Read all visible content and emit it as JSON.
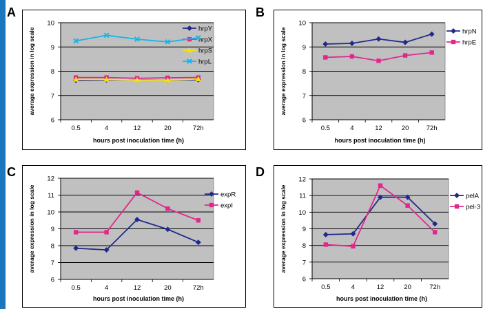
{
  "colors": {
    "side_bar": "#1a76bd",
    "plot_bg": "#c0c0c0"
  },
  "chart_data": [
    {
      "panel": "A",
      "type": "line",
      "categories": [
        "0.5",
        "4",
        "12",
        "20",
        "72h"
      ],
      "xlabel": "hours post inoculation time (h)",
      "ylabel": "average expression in log scale",
      "ylim": [
        6,
        10
      ],
      "yticks": [
        6,
        7,
        8,
        9,
        10
      ],
      "grid": true,
      "legend_position": "right",
      "series": [
        {
          "name": "hrpY",
          "color": "#1f2a8a",
          "marker": "diamond",
          "values": [
            7.62,
            7.64,
            7.65,
            7.63,
            7.65
          ]
        },
        {
          "name": "hrpX",
          "color": "#e0288c",
          "marker": "square",
          "values": [
            7.74,
            7.74,
            7.71,
            7.73,
            7.74
          ]
        },
        {
          "name": "hrpS",
          "color": "#f2e600",
          "marker": "triangle",
          "values": [
            7.66,
            7.66,
            7.64,
            7.63,
            7.68
          ]
        },
        {
          "name": "hrpL",
          "color": "#19b4e8",
          "marker": "x",
          "values": [
            9.25,
            9.48,
            9.32,
            9.21,
            9.38
          ]
        }
      ]
    },
    {
      "panel": "B",
      "type": "line",
      "categories": [
        "0.5",
        "4",
        "12",
        "20",
        "72h"
      ],
      "xlabel": "hours post inoculation time (h)",
      "ylabel": "average expression in log scale",
      "ylim": [
        6,
        10
      ],
      "yticks": [
        6,
        7,
        8,
        9,
        10
      ],
      "grid": true,
      "legend_position": "right",
      "series": [
        {
          "name": "hrpN",
          "color": "#1f2a8a",
          "marker": "diamond",
          "values": [
            9.12,
            9.15,
            9.33,
            9.19,
            9.53
          ]
        },
        {
          "name": "hrpE",
          "color": "#e0288c",
          "marker": "square",
          "values": [
            8.57,
            8.61,
            8.43,
            8.65,
            8.77
          ]
        }
      ]
    },
    {
      "panel": "C",
      "type": "line",
      "categories": [
        "0.5",
        "4",
        "12",
        "20",
        "72h"
      ],
      "xlabel": "hours post inoculation time (h)",
      "ylabel": "average expression in log scale",
      "ylim": [
        6,
        12
      ],
      "yticks": [
        6,
        7,
        8,
        9,
        10,
        11,
        12
      ],
      "grid": true,
      "legend_position": "right",
      "series": [
        {
          "name": "expR",
          "color": "#1f2a8a",
          "marker": "diamond",
          "values": [
            7.85,
            7.75,
            9.55,
            8.97,
            8.2
          ]
        },
        {
          "name": "expI",
          "color": "#e0288c",
          "marker": "square",
          "values": [
            8.8,
            8.8,
            11.15,
            10.2,
            9.5
          ]
        }
      ]
    },
    {
      "panel": "D",
      "type": "line",
      "categories": [
        "0.5",
        "4",
        "12",
        "20",
        "72h"
      ],
      "xlabel": "hours post inoculation time (h)",
      "ylabel": "average expression in log scale",
      "ylim": [
        6,
        12
      ],
      "yticks": [
        6,
        7,
        8,
        9,
        10,
        11,
        12
      ],
      "grid": true,
      "legend_position": "right",
      "series": [
        {
          "name": "pelA",
          "color": "#1f2a8a",
          "marker": "diamond",
          "values": [
            8.65,
            8.7,
            10.9,
            10.9,
            9.3
          ]
        },
        {
          "name": "pel-3",
          "color": "#e0288c",
          "marker": "square",
          "values": [
            8.05,
            7.95,
            11.6,
            10.4,
            8.8
          ]
        }
      ]
    }
  ]
}
